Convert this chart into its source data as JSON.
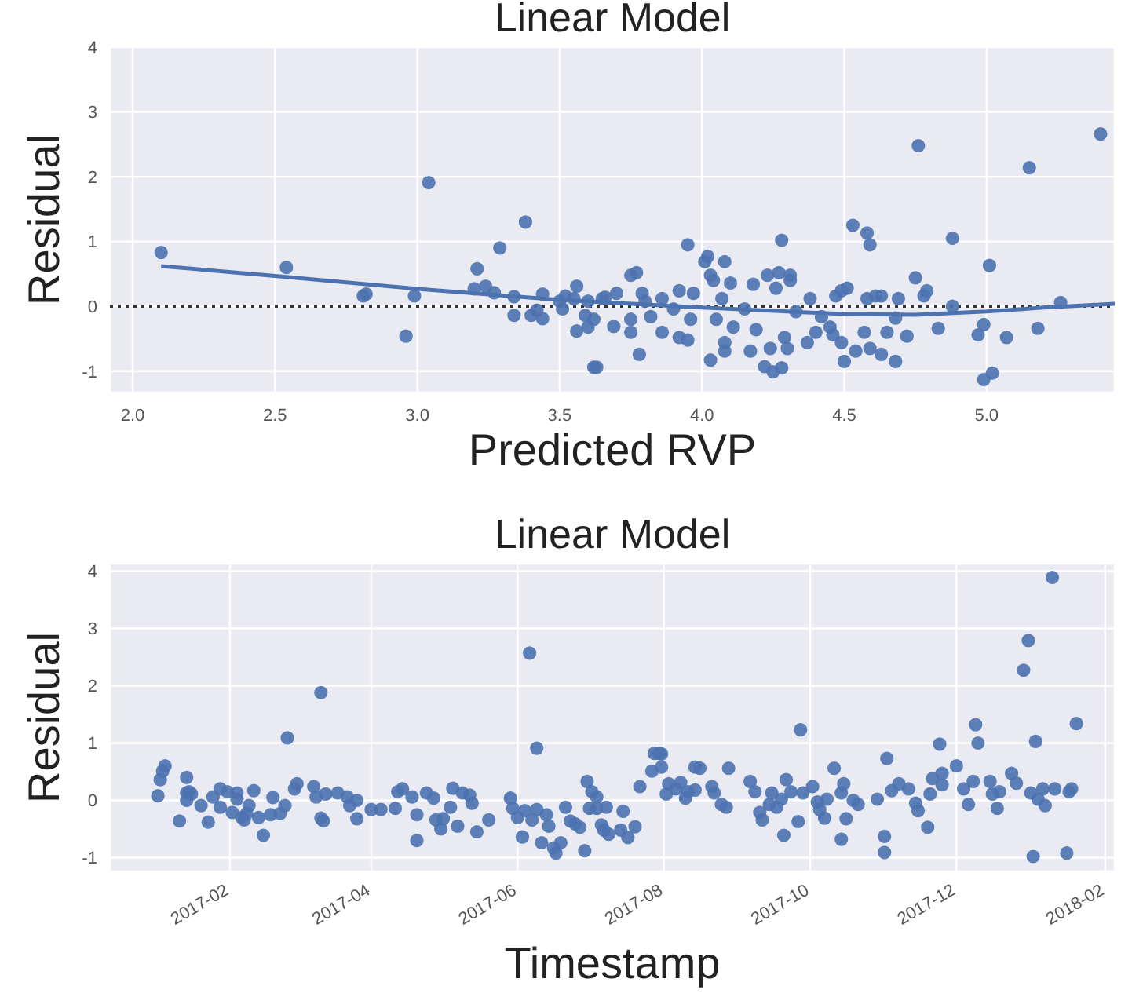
{
  "chart_data": [
    {
      "type": "scatter",
      "title": "Linear Model",
      "xlabel": "Predicted RVP",
      "ylabel": "Residual",
      "xlim": [
        1.92,
        5.45
      ],
      "ylim": [
        -1.33,
        4
      ],
      "xticks": [
        {
          "value": 2,
          "label": "2.0"
        },
        {
          "value": 2.5,
          "label": "2.5"
        },
        {
          "value": 3,
          "label": "3.0"
        },
        {
          "value": 3.5,
          "label": "3.5"
        },
        {
          "value": 4,
          "label": "4.0"
        },
        {
          "value": 4.5,
          "label": "4.5"
        },
        {
          "value": 5,
          "label": "5.0"
        }
      ],
      "yticks": [
        -1,
        0,
        1,
        2,
        3,
        4
      ],
      "grid": true,
      "ref_lines": [
        {
          "axis": "y",
          "value": 0,
          "color": "#333333",
          "line_style": "dotted"
        }
      ],
      "series": [
        {
          "marker": "circle",
          "color": "#4c72b0",
          "x": [
            2.1,
            2.54,
            2.81,
            2.82,
            2.96,
            2.99,
            3.04,
            3.2,
            3.21,
            3.24,
            3.27,
            3.29,
            3.34,
            3.34,
            3.38,
            3.4,
            3.42,
            3.44,
            3.44,
            3.5,
            3.51,
            3.52,
            3.55,
            3.56,
            3.56,
            3.59,
            3.6,
            3.62,
            3.62,
            3.6,
            3.65,
            3.63,
            3.66,
            3.69,
            3.7,
            3.75,
            3.77,
            3.75,
            3.75,
            3.78,
            3.79,
            3.8,
            3.82,
            3.86,
            3.86,
            3.9,
            3.92,
            3.92,
            3.95,
            3.95,
            3.96,
            3.97,
            4.01,
            4.02,
            4.03,
            4.04,
            4.03,
            4.05,
            4.07,
            4.08,
            4.08,
            4.08,
            4.1,
            4.11,
            4.15,
            4.17,
            4.18,
            4.19,
            4.22,
            4.23,
            4.24,
            4.25,
            4.26,
            4.27,
            4.28,
            4.28,
            4.29,
            4.3,
            4.31,
            4.31,
            4.33,
            4.37,
            4.38,
            4.4,
            4.42,
            4.45,
            4.46,
            4.47,
            4.49,
            4.49,
            4.5,
            4.51,
            4.53,
            4.54,
            4.57,
            4.58,
            4.58,
            4.59,
            4.59,
            4.61,
            4.63,
            4.63,
            4.65,
            4.68,
            4.68,
            4.69,
            4.72,
            4.75,
            4.76,
            4.78,
            4.79,
            4.83,
            4.88,
            4.88,
            4.97,
            4.99,
            4.99,
            5.01,
            5.02,
            5.07,
            5.15,
            5.18,
            5.26,
            5.4
          ],
          "values": [
            0.83,
            0.6,
            0.16,
            0.19,
            -0.46,
            0.16,
            1.91,
            0.27,
            0.58,
            0.31,
            0.21,
            0.9,
            0.15,
            -0.14,
            1.3,
            -0.14,
            -0.06,
            -0.19,
            0.19,
            0.08,
            -0.04,
            0.16,
            0.12,
            0.31,
            -0.38,
            -0.14,
            -0.32,
            -0.2,
            -0.94,
            0.08,
            0.12,
            -0.94,
            0.14,
            -0.31,
            0.2,
            0.48,
            0.52,
            -0.2,
            -0.4,
            -0.74,
            0.2,
            0.08,
            -0.16,
            0.12,
            -0.4,
            -0.04,
            0.24,
            -0.48,
            0.95,
            -0.52,
            -0.2,
            0.2,
            0.69,
            0.77,
            0.48,
            0.4,
            -0.83,
            -0.2,
            0.12,
            -0.56,
            0.69,
            -0.69,
            0.36,
            -0.32,
            -0.04,
            -0.69,
            0.34,
            -0.36,
            -0.93,
            0.48,
            -0.65,
            -1.01,
            0.28,
            0.52,
            -0.95,
            1.02,
            -0.48,
            -0.65,
            0.48,
            0.4,
            -0.08,
            -0.56,
            0.12,
            -0.4,
            -0.16,
            -0.32,
            -0.44,
            0.16,
            0.24,
            -0.56,
            -0.85,
            0.28,
            1.25,
            -0.69,
            -0.4,
            1.13,
            0.12,
            0.95,
            -0.65,
            0.16,
            -0.74,
            0.16,
            -0.4,
            -0.85,
            -0.18,
            0.12,
            -0.46,
            0.44,
            2.48,
            0.16,
            0.24,
            -0.34,
            0.0,
            1.05,
            -0.44,
            -0.28,
            -1.13,
            0.63,
            -1.03,
            -0.48,
            2.14,
            -0.34,
            0.06,
            2.66
          ]
        },
        {
          "type": "line",
          "marker": "none",
          "color": "#4c72b0",
          "x": [
            2.1,
            2.5,
            3.0,
            3.5,
            4.0,
            4.5,
            4.75,
            5.0,
            5.2,
            5.45
          ],
          "values": [
            0.62,
            0.47,
            0.27,
            0.1,
            -0.02,
            -0.12,
            -0.13,
            -0.08,
            -0.02,
            0.04
          ]
        }
      ]
    },
    {
      "type": "scatter",
      "title": "Linear Model",
      "xlabel": "Timestamp",
      "ylabel": "Residual",
      "xlim": [
        "2016-12-13",
        "2018-02-05"
      ],
      "ylim": [
        -1.24,
        4.13
      ],
      "xticks": [
        "2017-02",
        "2017-04",
        "2017-06",
        "2017-08",
        "2017-10",
        "2017-12",
        "2018-02"
      ],
      "yticks": [
        -1,
        0,
        1,
        2,
        3,
        4
      ],
      "grid": true,
      "series": [
        {
          "marker": "circle",
          "color": "#4c72b0",
          "x": [
            "2017-01-02",
            "2017-01-03",
            "2017-01-04",
            "2017-01-05",
            "2017-01-11",
            "2017-01-14",
            "2017-01-14",
            "2017-01-15",
            "2017-01-16",
            "2017-01-14",
            "2017-01-20",
            "2017-01-23",
            "2017-01-25",
            "2017-01-28",
            "2017-01-28",
            "2017-01-31",
            "2017-02-02",
            "2017-02-04",
            "2017-02-04",
            "2017-02-06",
            "2017-02-07",
            "2017-02-09",
            "2017-02-08",
            "2017-02-11",
            "2017-02-13",
            "2017-02-15",
            "2017-02-18",
            "2017-02-19",
            "2017-02-22",
            "2017-02-25",
            "2017-02-24",
            "2017-02-28",
            "2017-03-01",
            "2017-03-08",
            "2017-03-09",
            "2017-03-11",
            "2017-03-11",
            "2017-03-12",
            "2017-03-13",
            "2017-03-18",
            "2017-03-22",
            "2017-03-23",
            "2017-03-26",
            "2017-03-26",
            "2017-04-01",
            "2017-04-05",
            "2017-04-11",
            "2017-04-12",
            "2017-04-14",
            "2017-04-18",
            "2017-04-20",
            "2017-04-20",
            "2017-04-24",
            "2017-04-27",
            "2017-04-28",
            "2017-04-30",
            "2017-05-01",
            "2017-05-04",
            "2017-05-05",
            "2017-05-07",
            "2017-05-09",
            "2017-05-12",
            "2017-05-13",
            "2017-05-15",
            "2017-05-20",
            "2017-05-29",
            "2017-05-30",
            "2017-06-01",
            "2017-06-03",
            "2017-06-04",
            "2017-06-06",
            "2017-06-07",
            "2017-06-09",
            "2017-06-09",
            "2017-06-11",
            "2017-06-13",
            "2017-06-14",
            "2017-06-16",
            "2017-06-17",
            "2017-06-19",
            "2017-06-21",
            "2017-06-23",
            "2017-06-25",
            "2017-06-27",
            "2017-06-29",
            "2017-06-30",
            "2017-07-01",
            "2017-07-02",
            "2017-07-04",
            "2017-07-04",
            "2017-07-06",
            "2017-07-07",
            "2017-07-08",
            "2017-07-09",
            "2017-07-14",
            "2017-07-15",
            "2017-07-17",
            "2017-07-20",
            "2017-07-22",
            "2017-07-27",
            "2017-07-28",
            "2017-07-30",
            "2017-07-31",
            "2017-07-31",
            "2017-08-02",
            "2017-08-03",
            "2017-08-06",
            "2017-08-08",
            "2017-08-10",
            "2017-08-11",
            "2017-08-14",
            "2017-08-14",
            "2017-08-16",
            "2017-08-21",
            "2017-08-22",
            "2017-08-25",
            "2017-08-27",
            "2017-08-28",
            "2017-09-06",
            "2017-09-08",
            "2017-09-10",
            "2017-09-11",
            "2017-09-14",
            "2017-09-15",
            "2017-09-17",
            "2017-09-19",
            "2017-09-20",
            "2017-09-21",
            "2017-09-23",
            "2017-09-26",
            "2017-09-27",
            "2017-09-28",
            "2017-10-02",
            "2017-10-04",
            "2017-10-05",
            "2017-10-07",
            "2017-10-08",
            "2017-10-11",
            "2017-10-14",
            "2017-10-14",
            "2017-10-15",
            "2017-10-16",
            "2017-10-19",
            "2017-10-21",
            "2017-10-29",
            "2017-11-01",
            "2017-11-01",
            "2017-11-02",
            "2017-11-04",
            "2017-11-07",
            "2017-11-11",
            "2017-11-14",
            "2017-11-15",
            "2017-11-19",
            "2017-11-20",
            "2017-11-21",
            "2017-11-24",
            "2017-11-25",
            "2017-11-25",
            "2017-12-01",
            "2017-12-04",
            "2017-12-06",
            "2017-12-08",
            "2017-12-09",
            "2017-12-10",
            "2017-12-15",
            "2017-12-16",
            "2017-12-18",
            "2017-12-19",
            "2017-12-24",
            "2017-12-26",
            "2017-12-29",
            "2017-12-31",
            "2018-01-01",
            "2018-01-02",
            "2018-01-03",
            "2018-01-04",
            "2018-01-06",
            "2018-01-07",
            "2018-01-10",
            "2018-01-11",
            "2018-01-16",
            "2018-01-17",
            "2018-01-18",
            "2018-01-20"
          ],
          "values": [
            0.08,
            0.36,
            0.51,
            0.6,
            -0.36,
            0.4,
            0.13,
            0.15,
            0.11,
            0.0,
            -0.09,
            -0.38,
            0.06,
            -0.12,
            0.2,
            0.15,
            -0.21,
            0.13,
            0.02,
            -0.3,
            -0.34,
            -0.09,
            -0.23,
            0.17,
            -0.3,
            -0.61,
            -0.25,
            0.05,
            -0.23,
            1.09,
            -0.09,
            0.2,
            0.29,
            0.24,
            0.06,
            1.88,
            -0.31,
            -0.36,
            0.11,
            0.13,
            0.06,
            -0.09,
            -0.32,
            0.0,
            -0.16,
            -0.16,
            -0.14,
            0.15,
            0.2,
            0.06,
            -0.25,
            -0.7,
            0.13,
            0.04,
            -0.34,
            -0.5,
            -0.32,
            -0.12,
            0.21,
            -0.45,
            0.13,
            0.09,
            -0.05,
            -0.55,
            -0.34,
            0.04,
            -0.14,
            -0.3,
            -0.64,
            -0.18,
            2.57,
            -0.34,
            0.91,
            -0.16,
            -0.74,
            -0.25,
            -0.45,
            -0.83,
            -0.92,
            -0.74,
            -0.12,
            -0.36,
            -0.41,
            -0.47,
            -0.88,
            0.33,
            -0.14,
            0.15,
            0.06,
            -0.14,
            -0.43,
            -0.52,
            -0.12,
            -0.59,
            -0.52,
            -0.19,
            -0.65,
            -0.46,
            0.24,
            0.51,
            0.82,
            0.82,
            0.58,
            0.81,
            0.11,
            0.29,
            0.2,
            0.31,
            0.04,
            0.15,
            0.18,
            0.58,
            0.56,
            0.24,
            0.13,
            -0.07,
            -0.12,
            0.56,
            0.33,
            0.15,
            -0.21,
            -0.34,
            -0.07,
            0.13,
            -0.12,
            0.02,
            -0.61,
            0.36,
            0.15,
            -0.37,
            1.23,
            0.13,
            0.24,
            -0.03,
            -0.16,
            -0.31,
            0.02,
            0.56,
            -0.68,
            0.13,
            0.29,
            -0.32,
            0.0,
            -0.07,
            0.02,
            -0.63,
            -0.91,
            0.73,
            0.17,
            0.29,
            0.2,
            -0.05,
            -0.18,
            -0.47,
            0.11,
            0.38,
            0.98,
            0.27,
            0.47,
            0.6,
            0.2,
            -0.07,
            0.33,
            1.32,
            1.0,
            0.33,
            0.11,
            -0.14,
            0.15,
            0.47,
            0.3,
            2.27,
            2.79,
            0.13,
            -0.98,
            1.03,
            0.02,
            0.2,
            -0.09,
            3.89,
            0.2,
            -0.92,
            0.15,
            0.2,
            1.34
          ]
        }
      ]
    }
  ]
}
